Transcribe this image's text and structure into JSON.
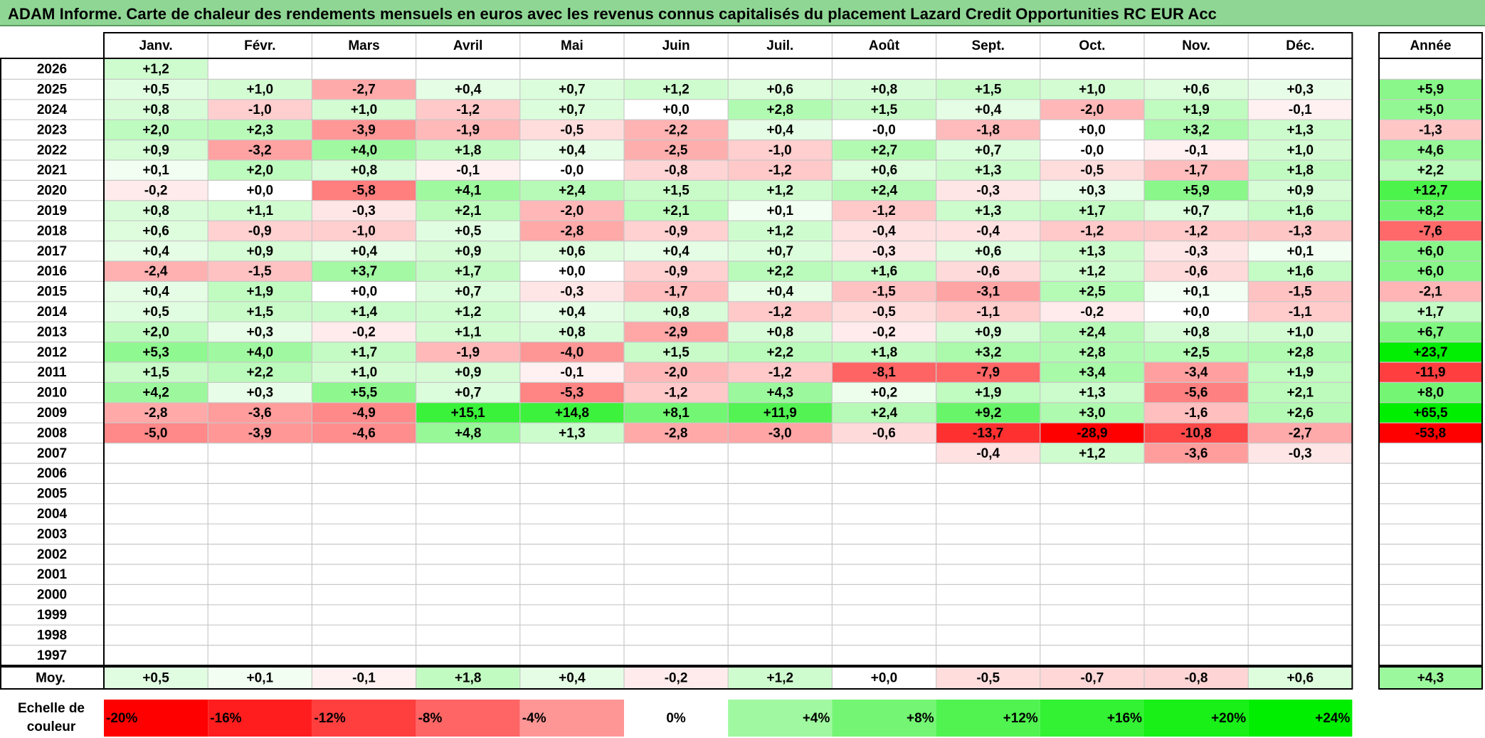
{
  "title": "ADAM Informe. Carte de chaleur des rendements mensuels en euros avec les revenus connus capitalisés du placement Lazard Credit Opportunities RC EUR Acc",
  "chart_data": {
    "type": "heatmap",
    "title": "ADAM Informe. Carte de chaleur des rendements mensuels en euros avec les revenus connus capitalisés du placement Lazard Credit Opportunities RC EUR Acc",
    "months": [
      "Janv.",
      "Févr.",
      "Mars",
      "Avril",
      "Mai",
      "Juin",
      "Juil.",
      "Août",
      "Sept.",
      "Oct.",
      "Nov.",
      "Déc."
    ],
    "annual_header": "Année",
    "average_label": "Moy.",
    "rows": [
      {
        "year": "2026",
        "values": [
          "+1,2",
          null,
          null,
          null,
          null,
          null,
          null,
          null,
          null,
          null,
          null,
          null
        ],
        "annual": null
      },
      {
        "year": "2025",
        "values": [
          "+0,5",
          "+1,0",
          "-2,7",
          "+0,4",
          "+0,7",
          "+1,2",
          "+0,6",
          "+0,8",
          "+1,5",
          "+1,0",
          "+0,6",
          "+0,3"
        ],
        "annual": "+5,9"
      },
      {
        "year": "2024",
        "values": [
          "+0,8",
          "-1,0",
          "+1,0",
          "-1,2",
          "+0,7",
          "+0,0",
          "+2,8",
          "+1,5",
          "+0,4",
          "-2,0",
          "+1,9",
          "-0,1"
        ],
        "annual": "+5,0"
      },
      {
        "year": "2023",
        "values": [
          "+2,0",
          "+2,3",
          "-3,9",
          "-1,9",
          "-0,5",
          "-2,2",
          "+0,4",
          "-0,0",
          "-1,8",
          "+0,0",
          "+3,2",
          "+1,3"
        ],
        "annual": "-1,3"
      },
      {
        "year": "2022",
        "values": [
          "+0,9",
          "-3,2",
          "+4,0",
          "+1,8",
          "+0,4",
          "-2,5",
          "-1,0",
          "+2,7",
          "+0,7",
          "-0,0",
          "-0,1",
          "+1,0"
        ],
        "annual": "+4,6"
      },
      {
        "year": "2021",
        "values": [
          "+0,1",
          "+2,0",
          "+0,8",
          "-0,1",
          "-0,0",
          "-0,8",
          "-1,2",
          "+0,6",
          "+1,3",
          "-0,5",
          "-1,7",
          "+1,8"
        ],
        "annual": "+2,2"
      },
      {
        "year": "2020",
        "values": [
          "-0,2",
          "+0,0",
          "-5,8",
          "+4,1",
          "+2,4",
          "+1,5",
          "+1,2",
          "+2,4",
          "-0,3",
          "+0,3",
          "+5,9",
          "+0,9"
        ],
        "annual": "+12,7"
      },
      {
        "year": "2019",
        "values": [
          "+0,8",
          "+1,1",
          "-0,3",
          "+2,1",
          "-2,0",
          "+2,1",
          "+0,1",
          "-1,2",
          "+1,3",
          "+1,7",
          "+0,7",
          "+1,6"
        ],
        "annual": "+8,2"
      },
      {
        "year": "2018",
        "values": [
          "+0,6",
          "-0,9",
          "-1,0",
          "+0,5",
          "-2,8",
          "-0,9",
          "+1,2",
          "-0,4",
          "-0,4",
          "-1,2",
          "-1,2",
          "-1,3"
        ],
        "annual": "-7,6"
      },
      {
        "year": "2017",
        "values": [
          "+0,4",
          "+0,9",
          "+0,4",
          "+0,9",
          "+0,6",
          "+0,4",
          "+0,7",
          "-0,3",
          "+0,6",
          "+1,3",
          "-0,3",
          "+0,1"
        ],
        "annual": "+6,0"
      },
      {
        "year": "2016",
        "values": [
          "-2,4",
          "-1,5",
          "+3,7",
          "+1,7",
          "+0,0",
          "-0,9",
          "+2,2",
          "+1,6",
          "-0,6",
          "+1,2",
          "-0,6",
          "+1,6"
        ],
        "annual": "+6,0"
      },
      {
        "year": "2015",
        "values": [
          "+0,4",
          "+1,9",
          "+0,0",
          "+0,7",
          "-0,3",
          "-1,7",
          "+0,4",
          "-1,5",
          "-3,1",
          "+2,5",
          "+0,1",
          "-1,5"
        ],
        "annual": "-2,1"
      },
      {
        "year": "2014",
        "values": [
          "+0,5",
          "+1,5",
          "+1,4",
          "+1,2",
          "+0,4",
          "+0,8",
          "-1,2",
          "-0,5",
          "-1,1",
          "-0,2",
          "+0,0",
          "-1,1"
        ],
        "annual": "+1,7"
      },
      {
        "year": "2013",
        "values": [
          "+2,0",
          "+0,3",
          "-0,2",
          "+1,1",
          "+0,8",
          "-2,9",
          "+0,8",
          "-0,2",
          "+0,9",
          "+2,4",
          "+0,8",
          "+1,0"
        ],
        "annual": "+6,7"
      },
      {
        "year": "2012",
        "values": [
          "+5,3",
          "+4,0",
          "+1,7",
          "-1,9",
          "-4,0",
          "+1,5",
          "+2,2",
          "+1,8",
          "+3,2",
          "+2,8",
          "+2,5",
          "+2,8"
        ],
        "annual": "+23,7"
      },
      {
        "year": "2011",
        "values": [
          "+1,5",
          "+2,2",
          "+1,0",
          "+0,9",
          "-0,1",
          "-2,0",
          "-1,2",
          "-8,1",
          "-7,9",
          "+3,4",
          "-3,4",
          "+1,9"
        ],
        "annual": "-11,9"
      },
      {
        "year": "2010",
        "values": [
          "+4,2",
          "+0,3",
          "+5,5",
          "+0,7",
          "-5,3",
          "-1,2",
          "+4,3",
          "+0,2",
          "+1,9",
          "+1,3",
          "-5,6",
          "+2,1"
        ],
        "annual": "+8,0"
      },
      {
        "year": "2009",
        "values": [
          "-2,8",
          "-3,6",
          "-4,9",
          "+15,1",
          "+14,8",
          "+8,1",
          "+11,9",
          "+2,4",
          "+9,2",
          "+3,0",
          "-1,6",
          "+2,6"
        ],
        "annual": "+65,5"
      },
      {
        "year": "2008",
        "values": [
          "-5,0",
          "-3,9",
          "-4,6",
          "+4,8",
          "+1,3",
          "-2,8",
          "-3,0",
          "-0,6",
          "-13,7",
          "-28,9",
          "-10,8",
          "-2,7"
        ],
        "annual": "-53,8"
      },
      {
        "year": "2007",
        "values": [
          null,
          null,
          null,
          null,
          null,
          null,
          null,
          null,
          "-0,4",
          "+1,2",
          "-3,6",
          "-0,3"
        ],
        "annual": null
      },
      {
        "year": "2006",
        "values": [
          null,
          null,
          null,
          null,
          null,
          null,
          null,
          null,
          null,
          null,
          null,
          null
        ],
        "annual": null
      },
      {
        "year": "2005",
        "values": [
          null,
          null,
          null,
          null,
          null,
          null,
          null,
          null,
          null,
          null,
          null,
          null
        ],
        "annual": null
      },
      {
        "year": "2004",
        "values": [
          null,
          null,
          null,
          null,
          null,
          null,
          null,
          null,
          null,
          null,
          null,
          null
        ],
        "annual": null
      },
      {
        "year": "2003",
        "values": [
          null,
          null,
          null,
          null,
          null,
          null,
          null,
          null,
          null,
          null,
          null,
          null
        ],
        "annual": null
      },
      {
        "year": "2002",
        "values": [
          null,
          null,
          null,
          null,
          null,
          null,
          null,
          null,
          null,
          null,
          null,
          null
        ],
        "annual": null
      },
      {
        "year": "2001",
        "values": [
          null,
          null,
          null,
          null,
          null,
          null,
          null,
          null,
          null,
          null,
          null,
          null
        ],
        "annual": null
      },
      {
        "year": "2000",
        "values": [
          null,
          null,
          null,
          null,
          null,
          null,
          null,
          null,
          null,
          null,
          null,
          null
        ],
        "annual": null
      },
      {
        "year": "1999",
        "values": [
          null,
          null,
          null,
          null,
          null,
          null,
          null,
          null,
          null,
          null,
          null,
          null
        ],
        "annual": null
      },
      {
        "year": "1998",
        "values": [
          null,
          null,
          null,
          null,
          null,
          null,
          null,
          null,
          null,
          null,
          null,
          null
        ],
        "annual": null
      },
      {
        "year": "1997",
        "values": [
          null,
          null,
          null,
          null,
          null,
          null,
          null,
          null,
          null,
          null,
          null,
          null
        ],
        "annual": null
      }
    ],
    "averages": [
      "+0,5",
      "+0,1",
      "-0,1",
      "+1,8",
      "+0,4",
      "-0,2",
      "+1,2",
      "+0,0",
      "-0,5",
      "-0,7",
      "-0,8",
      "+0,6"
    ],
    "average_annual": "+4,3",
    "scale": {
      "label_line1": "Echelle de",
      "label_line2": "couleur",
      "steps": [
        {
          "label": "-20%",
          "value": -20
        },
        {
          "label": "-16%",
          "value": -16
        },
        {
          "label": "-12%",
          "value": -12
        },
        {
          "label": "-8%",
          "value": -8
        },
        {
          "label": "-4%",
          "value": -4
        },
        {
          "label": "0%",
          "value": 0
        },
        {
          "label": "+4%",
          "value": 4
        },
        {
          "label": "+8%",
          "value": 8
        },
        {
          "label": "+12%",
          "value": 12
        },
        {
          "label": "+16%",
          "value": 16
        },
        {
          "label": "+20%",
          "value": 20
        },
        {
          "label": "+24%",
          "value": 24
        }
      ]
    },
    "colors": {
      "negative_max": "#ff0000",
      "neutral": "#ffffff",
      "positive_max": "#00ee00",
      "title_background": "#8fd694",
      "grid": "#c8c8c8",
      "border": "#000000"
    }
  }
}
